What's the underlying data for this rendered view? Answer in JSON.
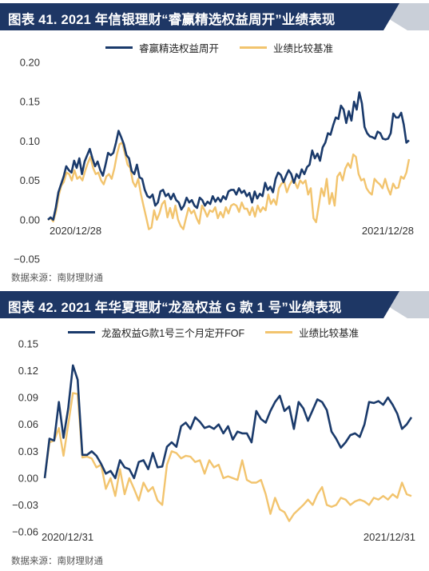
{
  "charts": [
    {
      "title": "图表 41. 2021 年信银理财“睿赢精选权益周开”业绩表现",
      "source": "数据来源：南财理财通",
      "date_start": "2020/12/28",
      "date_end": "2021/12/28",
      "colors": {
        "header_bg": "#1e3765",
        "header_accent": "#c9cfd8",
        "fund": "#1a3a6b",
        "benchmark": "#f2c46e"
      }
    },
    {
      "title": "图表 42. 2021 年华夏理财“龙盈权益 G 款 1 号”业绩表现",
      "source": "数据来源：南财理财通",
      "date_start": "2020/12/31",
      "date_end": "2021/12/31",
      "colors": {
        "header_bg": "#1e3765",
        "header_accent": "#c9cfd8",
        "fund": "#1a3a6b",
        "benchmark": "#f2c46e"
      }
    }
  ],
  "chart_data": [
    {
      "type": "line",
      "title": "图表 41. 2021 年信银理财“睿赢精选权益周开”业绩表现",
      "xlabel": "",
      "ylabel": "",
      "x_range": [
        "2020/12/28",
        "2021/12/28"
      ],
      "yticks": [
        "0.20",
        "0.15",
        "0.10",
        "0.05",
        "0.00",
        "−0.05"
      ],
      "ylim": [
        -0.05,
        0.2
      ],
      "grid": false,
      "legend_position": "top-center",
      "series": [
        {
          "name": "睿赢精选权益周开",
          "color": "#1a3a6b",
          "values": [
            0.0,
            0.003,
            0.0,
            0.015,
            0.035,
            0.045,
            0.055,
            0.068,
            0.063,
            0.06,
            0.075,
            0.066,
            0.078,
            0.058,
            0.074,
            0.082,
            0.09,
            0.078,
            0.068,
            0.074,
            0.063,
            0.056,
            0.07,
            0.085,
            0.082,
            0.085,
            0.098,
            0.113,
            0.105,
            0.096,
            0.082,
            0.078,
            0.062,
            0.058,
            0.07,
            0.054,
            0.052,
            0.038,
            0.03,
            0.028,
            0.032,
            0.018,
            0.022,
            0.036,
            0.038,
            0.03,
            0.033,
            0.026,
            0.033,
            0.025,
            0.022,
            0.013,
            0.018,
            0.028,
            0.022,
            0.025,
            0.018,
            0.015,
            0.028,
            0.025,
            0.018,
            0.023,
            0.02,
            0.03,
            0.023,
            0.028,
            0.023,
            0.03,
            0.026,
            0.036,
            0.038,
            0.038,
            0.032,
            0.04,
            0.034,
            0.037,
            0.03,
            0.034,
            0.022,
            0.036,
            0.027,
            0.033,
            0.03,
            0.047,
            0.038,
            0.042,
            0.035,
            0.052,
            0.06,
            0.057,
            0.048,
            0.056,
            0.063,
            0.058,
            0.047,
            0.058,
            0.053,
            0.064,
            0.058,
            0.067,
            0.07,
            0.088,
            0.078,
            0.084,
            0.075,
            0.092,
            0.098,
            0.11,
            0.108,
            0.12,
            0.13,
            0.128,
            0.145,
            0.14,
            0.123,
            0.138,
            0.126,
            0.15,
            0.14,
            0.162,
            0.148,
            0.118,
            0.11,
            0.106,
            0.105,
            0.103,
            0.112,
            0.11,
            0.103,
            0.102,
            0.103,
            0.11,
            0.135,
            0.13,
            0.13,
            0.136,
            0.121,
            0.098,
            0.101
          ]
        },
        {
          "name": "业绩比较基准",
          "color": "#f2c46e",
          "values": [
            0.0,
            0.002,
            -0.002,
            0.01,
            0.03,
            0.043,
            0.048,
            0.06,
            0.058,
            0.05,
            0.063,
            0.052,
            0.055,
            0.05,
            0.062,
            0.072,
            0.08,
            0.066,
            0.058,
            0.06,
            0.05,
            0.045,
            0.055,
            0.058,
            0.052,
            0.065,
            0.083,
            0.096,
            0.098,
            0.084,
            0.07,
            0.066,
            0.048,
            0.042,
            0.052,
            0.033,
            0.018,
            0.003,
            -0.012,
            -0.01,
            0.012,
            0.0,
            0.008,
            0.02,
            0.024,
            0.003,
            0.015,
            0.002,
            0.018,
            0.0,
            -0.008,
            -0.012,
            0.002,
            0.015,
            0.008,
            0.012,
            0.002,
            -0.005,
            0.018,
            0.012,
            0.004,
            0.012,
            0.01,
            0.016,
            0.002,
            0.01,
            0.003,
            0.016,
            0.008,
            0.018,
            0.02,
            0.018,
            0.01,
            0.022,
            0.014,
            0.014,
            0.006,
            0.016,
            0.004,
            0.018,
            0.01,
            0.016,
            0.012,
            0.032,
            0.02,
            0.026,
            0.019,
            0.04,
            0.046,
            0.048,
            0.035,
            0.044,
            0.05,
            0.048,
            0.04,
            0.05,
            0.046,
            0.05,
            0.032,
            0.04,
            0.002,
            -0.003,
            0.018,
            0.04,
            0.03,
            0.052,
            0.02,
            0.034,
            0.018,
            0.055,
            0.06,
            0.05,
            0.065,
            0.072,
            0.066,
            0.083,
            0.08,
            0.058,
            0.05,
            0.052,
            0.04,
            0.035,
            0.032,
            0.052,
            0.048,
            0.045,
            0.04,
            0.052,
            0.04,
            0.032,
            0.046,
            0.04,
            0.041,
            0.055,
            0.052,
            0.06,
            0.077
          ]
        }
      ]
    },
    {
      "type": "line",
      "title": "图表 42. 2021 年华夏理财“龙盈权益 G 款 1 号”业绩表现",
      "xlabel": "",
      "ylabel": "",
      "x_range": [
        "2020/12/31",
        "2021/12/31"
      ],
      "yticks": [
        "0.15",
        "0.12",
        "0.09",
        "0.06",
        "0.03",
        "0.00",
        "−0.03",
        "−0.06"
      ],
      "ylim": [
        -0.06,
        0.15
      ],
      "grid": false,
      "legend_position": "top-center",
      "series": [
        {
          "name": "龙盈权益G款1号三个月定开FOF",
          "color": "#1a3a6b",
          "values": [
            0.0,
            0.044,
            0.042,
            0.085,
            0.045,
            0.078,
            0.126,
            0.11,
            0.026,
            0.026,
            0.03,
            0.025,
            0.016,
            0.005,
            0.008,
            0.0,
            0.02,
            0.012,
            0.01,
            0.0,
            0.018,
            0.02,
            0.01,
            0.028,
            0.012,
            0.013,
            0.035,
            0.04,
            0.035,
            0.058,
            0.062,
            0.055,
            0.068,
            0.063,
            0.056,
            0.058,
            0.055,
            0.06,
            0.05,
            0.058,
            0.043,
            0.052,
            0.05,
            0.05,
            0.04,
            0.075,
            0.066,
            0.062,
            0.075,
            0.085,
            0.092,
            0.075,
            0.08,
            0.055,
            0.085,
            0.078,
            0.064,
            0.076,
            0.088,
            0.085,
            0.076,
            0.052,
            0.044,
            0.034,
            0.04,
            0.048,
            0.05,
            0.046,
            0.06,
            0.085,
            0.084,
            0.086,
            0.082,
            0.09,
            0.082,
            0.072,
            0.055,
            0.06,
            0.068
          ]
        },
        {
          "name": "业绩比较基准",
          "color": "#f2c46e",
          "values": [
            0.0,
            0.04,
            0.042,
            0.056,
            0.025,
            0.06,
            0.095,
            0.094,
            0.023,
            0.024,
            0.022,
            0.012,
            0.015,
            -0.012,
            0.0,
            -0.02,
            0.01,
            -0.018,
            0.0,
            -0.012,
            -0.025,
            -0.005,
            -0.015,
            -0.01,
            -0.025,
            -0.03,
            0.015,
            0.03,
            0.028,
            0.022,
            0.025,
            0.024,
            0.018,
            0.02,
            0.005,
            0.02,
            0.012,
            0.015,
            0.0,
            0.002,
            0.0,
            -0.002,
            0.02,
            -0.002,
            -0.005,
            -0.005,
            -0.002,
            -0.018,
            -0.04,
            -0.022,
            -0.035,
            -0.038,
            -0.048,
            -0.04,
            -0.035,
            -0.03,
            -0.024,
            -0.03,
            -0.018,
            -0.01,
            -0.03,
            -0.032,
            -0.03,
            -0.022,
            -0.024,
            -0.03,
            -0.026,
            -0.024,
            -0.026,
            -0.03,
            -0.022,
            -0.024,
            -0.02,
            -0.024,
            -0.018,
            -0.022,
            -0.005,
            -0.018,
            -0.02
          ]
        }
      ]
    }
  ]
}
